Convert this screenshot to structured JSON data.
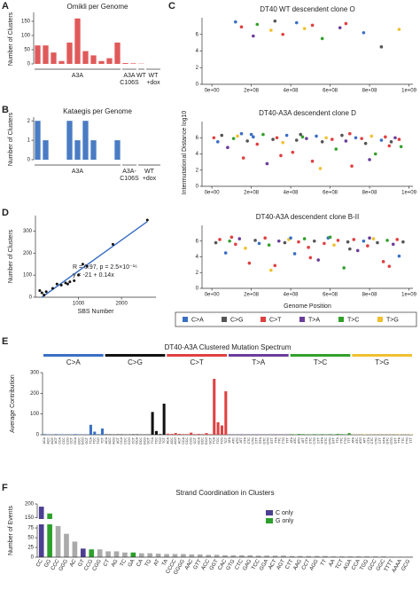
{
  "chart_data": [
    {
      "type": "bar",
      "letter": "A",
      "title": "Omikli per Genome",
      "ylabel": "Number of Clusters",
      "color": "#e05a5a",
      "categories": [
        null,
        null,
        null,
        null,
        null,
        null,
        null,
        null,
        null,
        null,
        null,
        null,
        null,
        null,
        null,
        null
      ],
      "values": [
        65,
        65,
        40,
        10,
        75,
        160,
        45,
        30,
        10,
        20,
        75,
        3,
        2,
        1,
        0,
        0
      ],
      "group_labels": [
        [
          "A3A"
        ],
        [
          "A3A",
          "C106S"
        ],
        [
          "WT"
        ],
        [
          "WT",
          "+dox"
        ]
      ],
      "groups": [
        0,
        0,
        0,
        0,
        0,
        0,
        0,
        0,
        0,
        0,
        0,
        1,
        1,
        2,
        3,
        3
      ],
      "ylim": [
        0,
        175
      ],
      "yticks": [
        0,
        50,
        100,
        150
      ]
    },
    {
      "type": "bar",
      "letter": "B",
      "title": "Kataegis per Genome",
      "ylabel": "Number of Clusters",
      "color": "#4a7cc4",
      "categories": [
        null,
        null,
        null,
        null,
        null,
        null,
        null,
        null,
        null,
        null,
        null,
        null,
        null,
        null,
        null,
        null
      ],
      "values": [
        2,
        1,
        0,
        0,
        2,
        1,
        2,
        1,
        0,
        0,
        1,
        0,
        0,
        0,
        0,
        0
      ],
      "group_labels": [
        [
          "A3A"
        ],
        [
          "A3A-",
          "C106S"
        ],
        [
          "WT",
          "+dox"
        ]
      ],
      "groups": [
        0,
        0,
        0,
        0,
        0,
        0,
        0,
        0,
        0,
        0,
        0,
        1,
        1,
        2,
        2,
        2
      ],
      "ylim": [
        0,
        2.1
      ],
      "yticks": [
        0,
        1,
        2
      ]
    },
    {
      "type": "scatter_facets",
      "letter": "C",
      "ylabel": "Intermutational Distance log10",
      "xlabel": "Genome Position",
      "legend": [
        "C>A",
        "C>G",
        "C>T",
        "T>A",
        "T>C",
        "T>G"
      ],
      "colors": [
        "#3a6fc4",
        "#555555",
        "#e04040",
        "#6a3d9a",
        "#33a02c",
        "#f0c030"
      ],
      "xlim": [
        -50000000.0,
        1020000000.0
      ],
      "ylim": [
        0,
        8
      ],
      "yticks": [
        0,
        2,
        4,
        6
      ],
      "xticks": [
        {
          "value": 0,
          "label": "0e+00"
        },
        {
          "value": 200000000.0,
          "label": "2e+08"
        },
        {
          "value": 400000000.0,
          "label": "4e+08"
        },
        {
          "value": 600000000.0,
          "label": "6e+08"
        },
        {
          "value": 800000000.0,
          "label": "8e+08"
        },
        {
          "value": 1000000000.0,
          "label": "1e+09"
        }
      ],
      "panels": [
        {
          "title": "DT40 WT descendent clone O",
          "x": [
            120000000.0,
            150000000.0,
            210000000.0,
            230000000.0,
            300000000.0,
            320000000.0,
            360000000.0,
            430000000.0,
            470000000.0,
            510000000.0,
            560000000.0,
            650000000.0,
            680000000.0,
            770000000.0,
            860000000.0,
            950000000.0
          ],
          "y": [
            7.5,
            6.9,
            5.8,
            7.2,
            6.5,
            7.6,
            6,
            7.4,
            6.7,
            7.1,
            5.5,
            6.8,
            7.3,
            6.2,
            4.5,
            6.6
          ],
          "g": [
            0,
            2,
            3,
            4,
            5,
            1,
            2,
            0,
            5,
            2,
            4,
            3,
            2,
            0,
            1,
            5
          ]
        },
        {
          "title": "DT40-A3A descendent clone D",
          "x": [
            10000000.0,
            30000000.0,
            50000000.0,
            80000000.0,
            110000000.0,
            130000000.0,
            160000000.0,
            180000000.0,
            210000000.0,
            230000000.0,
            260000000.0,
            280000000.0,
            310000000.0,
            330000000.0,
            360000000.0,
            380000000.0,
            410000000.0,
            430000000.0,
            460000000.0,
            480000000.0,
            510000000.0,
            530000000.0,
            560000000.0,
            580000000.0,
            610000000.0,
            630000000.0,
            660000000.0,
            680000000.0,
            710000000.0,
            730000000.0,
            760000000.0,
            780000000.0,
            810000000.0,
            830000000.0,
            860000000.0,
            880000000.0,
            910000000.0,
            930000000.0,
            950000000.0,
            960000000.0,
            150000000.0,
            350000000.0,
            450000000.0,
            550000000.0,
            700000000.0,
            800000000.0,
            200000000.0,
            900000000.0
          ],
          "y": [
            6,
            5.5,
            6.3,
            4.8,
            5.9,
            6.2,
            3.5,
            5.6,
            6.1,
            5.2,
            6.4,
            2.8,
            5.8,
            6,
            5.4,
            6.3,
            4.2,
            5.7,
            6.1,
            5.9,
            3.1,
            6.2,
            5.5,
            6,
            5.8,
            4.6,
            6.3,
            5.6,
            2.5,
            6,
            5.9,
            5.3,
            6.2,
            4,
            5.7,
            6.1,
            5.5,
            6,
            5.8,
            4.9,
            6.5,
            3.8,
            6.4,
            2.2,
            6.5,
            3.3,
            6.4,
            5
          ],
          "g": [
            2,
            0,
            1,
            3,
            4,
            5,
            2,
            1,
            0,
            2,
            4,
            3,
            1,
            2,
            5,
            0,
            2,
            1,
            4,
            3,
            2,
            0,
            1,
            5,
            2,
            4,
            1,
            3,
            2,
            0,
            2,
            1,
            5,
            4,
            0,
            2,
            1,
            3,
            2,
            4,
            0,
            2,
            1,
            5,
            2,
            3,
            0,
            2
          ]
        },
        {
          "title": "DT40-A3A descendent clone B-II",
          "x": [
            20000000.0,
            40000000.0,
            70000000.0,
            90000000.0,
            120000000.0,
            140000000.0,
            170000000.0,
            190000000.0,
            220000000.0,
            240000000.0,
            270000000.0,
            290000000.0,
            320000000.0,
            340000000.0,
            370000000.0,
            390000000.0,
            420000000.0,
            440000000.0,
            470000000.0,
            490000000.0,
            520000000.0,
            540000000.0,
            570000000.0,
            590000000.0,
            620000000.0,
            640000000.0,
            670000000.0,
            690000000.0,
            720000000.0,
            740000000.0,
            770000000.0,
            790000000.0,
            820000000.0,
            840000000.0,
            870000000.0,
            890000000.0,
            920000000.0,
            940000000.0,
            950000000.0,
            970000000.0,
            100000000.0,
            300000000.0,
            400000000.0,
            500000000.0,
            600000000.0,
            700000000.0,
            800000000.0,
            900000000.0
          ],
          "y": [
            5.8,
            6.2,
            4.5,
            6,
            5.6,
            6.3,
            5.1,
            3.2,
            6.1,
            5.7,
            6.4,
            5.5,
            2.9,
            6,
            5.8,
            6.2,
            4.4,
            5.9,
            6.3,
            5.2,
            6,
            3.6,
            5.7,
            6.4,
            5.5,
            6.1,
            2.6,
            5.9,
            6.2,
            4.8,
            6,
            5.4,
            6.3,
            5.8,
            3.4,
            6.1,
            5.6,
            6.2,
            4.1,
            5.9,
            6.5,
            2.3,
            6.4,
            3.9,
            6.5,
            5,
            6.4,
            2.8
          ],
          "g": [
            1,
            2,
            0,
            4,
            2,
            3,
            5,
            2,
            1,
            0,
            2,
            4,
            2,
            3,
            1,
            5,
            0,
            2,
            4,
            2,
            1,
            3,
            2,
            0,
            5,
            2,
            4,
            1,
            2,
            3,
            0,
            2,
            5,
            1,
            2,
            4,
            3,
            2,
            0,
            1,
            2,
            5,
            0,
            2,
            4,
            1,
            3,
            2
          ]
        }
      ]
    },
    {
      "type": "scatter",
      "letter": "D",
      "ylabel": "Number of Clusters",
      "xlabel": "SBS Number",
      "annotations": [
        "R = 0.97, p = 2.5×10⁻¹⁶",
        "y = -21 + 0.14x"
      ],
      "x": [
        100,
        150,
        200,
        250,
        400,
        500,
        600,
        700,
        750,
        800,
        900,
        1000,
        1100,
        1200,
        1800,
        2600
      ],
      "y": [
        30,
        20,
        10,
        25,
        40,
        60,
        55,
        65,
        60,
        70,
        75,
        100,
        150,
        140,
        240,
        350
      ],
      "fit": {
        "x": [
          150,
          2600
        ],
        "y": [
          0,
          343
        ],
        "color": "#3a6fc4"
      },
      "xlim": [
        0,
        2800
      ],
      "ylim": [
        0,
        370
      ],
      "xticks": [
        1000,
        2000
      ],
      "yticks": [
        0,
        100,
        200,
        300
      ]
    },
    {
      "type": "spectrum",
      "letter": "E",
      "title": "DT40-A3A Clustered Mutation Spectrum",
      "ylabel": "Average Contribution",
      "ylim": [
        0,
        300
      ],
      "yticks": [
        0,
        100,
        200,
        300
      ],
      "series": [
        {
          "name": "C>A",
          "color": "#3a6fc4",
          "categories": [
            "ACA",
            "ACC",
            "ACG",
            "ACT",
            "CCA",
            "CCC",
            "CCG",
            "CCT",
            "GCA",
            "GCC",
            "GCG",
            "GCT",
            "TCA",
            "TCC",
            "TCG",
            "TCT"
          ],
          "values": [
            3,
            2,
            1,
            3,
            2,
            2,
            1,
            2,
            3,
            2,
            1,
            2,
            48,
            15,
            3,
            30
          ]
        },
        {
          "name": "C>G",
          "color": "#111111",
          "categories": [
            "ACA",
            "ACC",
            "ACG",
            "ACT",
            "CCA",
            "CCC",
            "CCG",
            "CCT",
            "GCA",
            "GCC",
            "GCG",
            "GCT",
            "TCA",
            "TCC",
            "TCG",
            "TCT"
          ],
          "values": [
            2,
            2,
            1,
            2,
            2,
            1,
            1,
            2,
            2,
            1,
            1,
            1,
            110,
            18,
            3,
            150
          ]
        },
        {
          "name": "C>T",
          "color": "#e04040",
          "categories": [
            "ACA",
            "ACC",
            "ACG",
            "ACT",
            "CCA",
            "CCC",
            "CCG",
            "CCT",
            "GCA",
            "GCC",
            "GCG",
            "GCT",
            "TCA",
            "TCC",
            "TCG",
            "TCT"
          ],
          "values": [
            5,
            4,
            8,
            4,
            3,
            3,
            10,
            3,
            4,
            3,
            8,
            3,
            270,
            60,
            45,
            210
          ]
        },
        {
          "name": "T>A",
          "color": "#6a3d9a",
          "categories": [
            "ATA",
            "ATC",
            "ATG",
            "ATT",
            "CTA",
            "CTC",
            "CTG",
            "CTT",
            "GTA",
            "GTC",
            "GTG",
            "GTT",
            "TTA",
            "TTC",
            "TTG",
            "TTT"
          ],
          "values": [
            2,
            1,
            1,
            2,
            1,
            1,
            1,
            2,
            1,
            1,
            1,
            1,
            2,
            1,
            1,
            2
          ]
        },
        {
          "name": "T>C",
          "color": "#33a02c",
          "categories": [
            "ATA",
            "ATC",
            "ATG",
            "ATT",
            "CTA",
            "CTC",
            "CTG",
            "CTT",
            "GTA",
            "GTC",
            "GTG",
            "GTT",
            "TTA",
            "TTC",
            "TTG",
            "TTT"
          ],
          "values": [
            3,
            2,
            4,
            3,
            2,
            2,
            3,
            2,
            3,
            2,
            3,
            2,
            4,
            3,
            2,
            8
          ]
        },
        {
          "name": "T>G",
          "color": "#f0c030",
          "categories": [
            "ATA",
            "ATC",
            "ATG",
            "ATT",
            "CTA",
            "CTC",
            "CTG",
            "CTT",
            "GTA",
            "GTC",
            "GTG",
            "GTT",
            "TTA",
            "TTC",
            "TTG",
            "TTT"
          ],
          "values": [
            1,
            1,
            1,
            2,
            1,
            1,
            1,
            1,
            1,
            1,
            1,
            1,
            2,
            1,
            1,
            2
          ]
        }
      ]
    },
    {
      "type": "broken_bar",
      "letter": "F",
      "title": "Strand Coordination in Clusters",
      "ylabel": "Number of Events",
      "color": "#aaaaaa",
      "series": [
        {
          "name": "C only",
          "color": "#4b3f91"
        },
        {
          "name": "G only",
          "color": "#2ca02c"
        }
      ],
      "categories": [
        "CC",
        "GG",
        "CCC",
        "GGG",
        "AC",
        "GT",
        "CCG",
        "CGG",
        "CT",
        "AG",
        "TC",
        "GA",
        "CA",
        "TG",
        "AT",
        "TA",
        "CCCC",
        "GGGG",
        "AAC",
        "GTT",
        "ACC",
        "GGT",
        "CAC",
        "GTG",
        "CTC",
        "GAG",
        "TCC",
        "GGA",
        "ACT",
        "AGT",
        "CTT",
        "AAG",
        "CCT",
        "AGG",
        "TT",
        "AA",
        "TCT",
        "AGA",
        "CCA",
        "TGG",
        "GCC",
        "GGC",
        "TTTT",
        "AAAA",
        "GCG"
      ],
      "values": [
        190,
        165,
        80,
        60,
        40,
        22,
        20,
        20,
        15,
        15,
        12,
        12,
        10,
        10,
        9,
        8,
        8,
        8,
        7,
        7,
        6,
        6,
        5,
        5,
        5,
        5,
        4,
        4,
        4,
        4,
        3,
        3,
        3,
        3,
        3,
        2,
        2,
        2,
        2,
        2,
        2,
        2,
        1,
        1,
        1
      ],
      "groups": [
        0,
        1,
        null,
        null,
        null,
        0,
        1,
        null,
        null,
        null,
        null,
        1,
        null,
        null,
        null,
        null,
        null,
        null,
        null,
        null,
        null,
        null,
        null,
        null,
        null,
        null,
        null,
        null,
        null,
        null,
        null,
        null,
        null,
        null,
        null,
        null,
        null,
        null,
        null,
        null,
        null,
        null,
        null,
        null,
        null
      ],
      "ylim": [
        0,
        200
      ],
      "ybreak": [
        82,
        148
      ],
      "yticks": [
        0,
        25,
        50,
        75,
        150,
        200
      ]
    }
  ]
}
